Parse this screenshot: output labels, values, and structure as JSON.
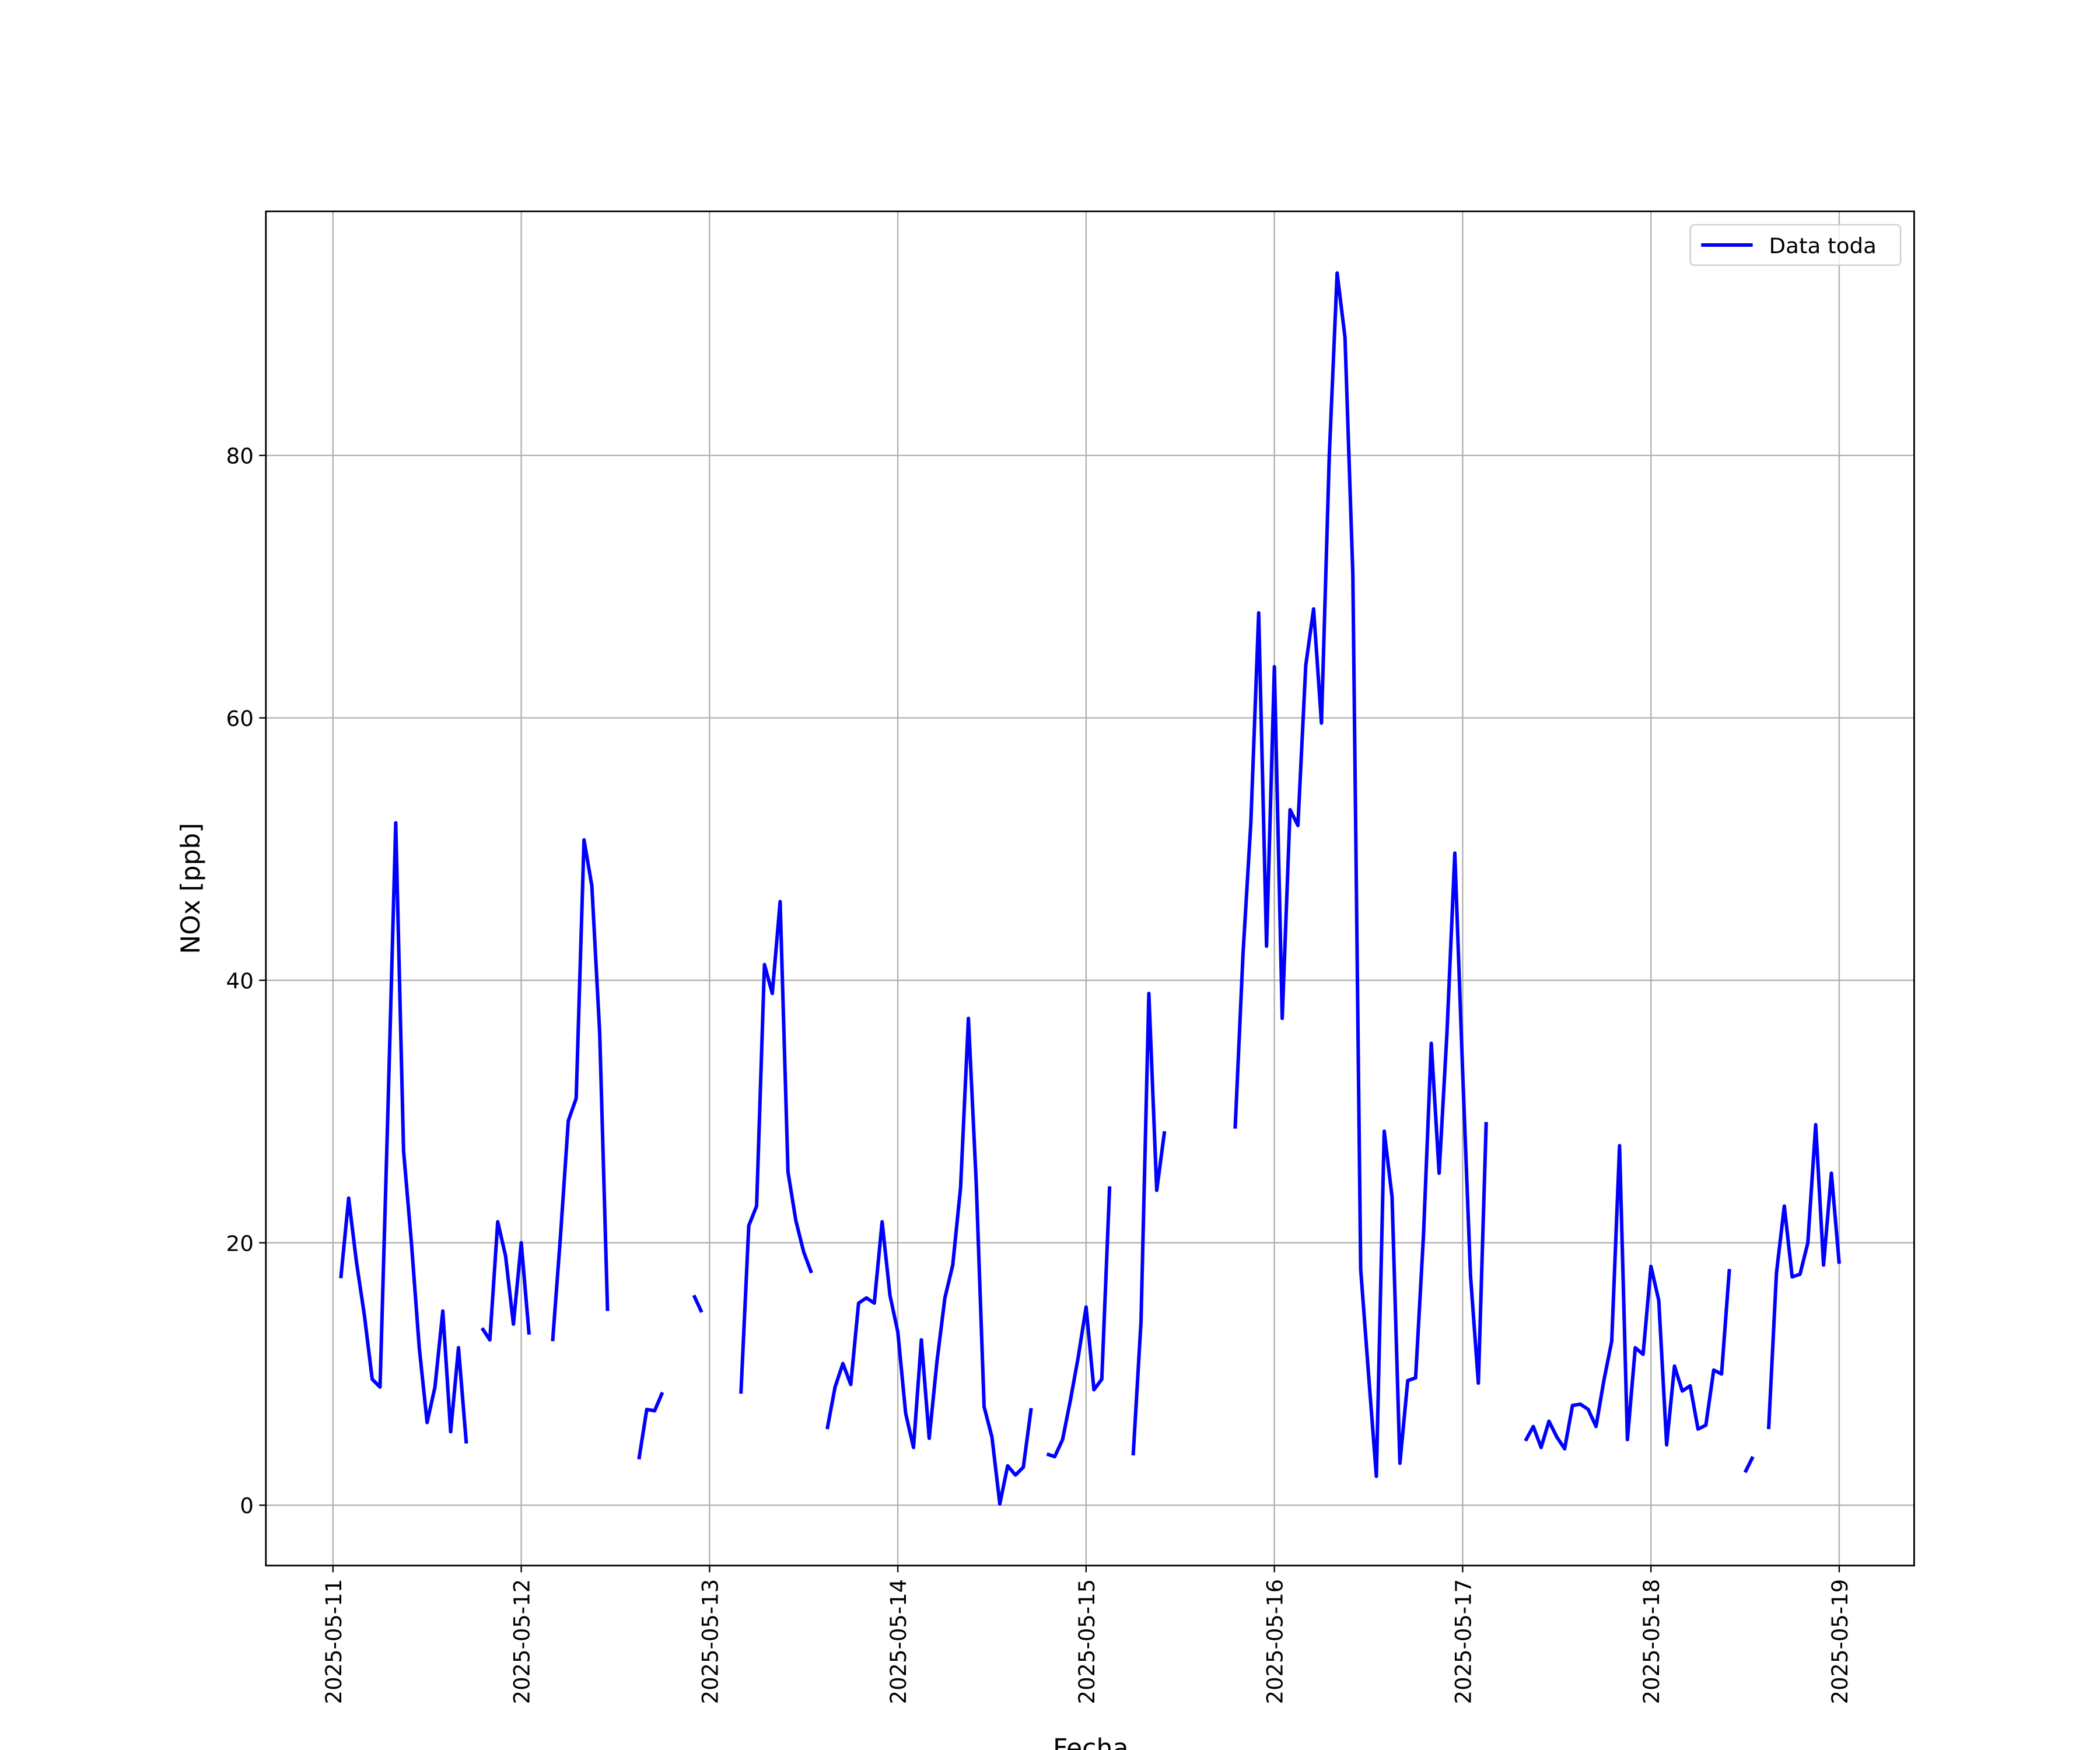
{
  "chart_data": {
    "type": "line",
    "xlabel": "Fecha",
    "ylabel": "NOx [ppb]",
    "x": [
      "2025-05-11 01:00",
      "2025-05-11 02:00",
      "2025-05-11 03:00",
      "2025-05-11 04:00",
      "2025-05-11 05:00",
      "2025-05-11 06:00",
      "2025-05-11 07:00",
      "2025-05-11 08:00",
      "2025-05-11 09:00",
      "2025-05-11 10:00",
      "2025-05-11 11:00",
      "2025-05-11 12:00",
      "2025-05-11 13:00",
      "2025-05-11 14:00",
      "2025-05-11 15:00",
      "2025-05-11 16:00",
      "2025-05-11 17:00",
      "2025-05-11 18:00",
      "2025-05-11 19:00",
      "2025-05-11 20:00",
      "2025-05-11 21:00",
      "2025-05-11 22:00",
      "2025-05-11 23:00",
      "2025-05-12 00:00",
      "2025-05-12 01:00",
      "2025-05-12 02:00",
      "2025-05-12 03:00",
      "2025-05-12 04:00",
      "2025-05-12 05:00",
      "2025-05-12 06:00",
      "2025-05-12 07:00",
      "2025-05-12 08:00",
      "2025-05-12 09:00",
      "2025-05-12 10:00",
      "2025-05-12 11:00",
      "2025-05-12 12:00",
      "2025-05-12 13:00",
      "2025-05-12 14:00",
      "2025-05-12 15:00",
      "2025-05-12 16:00",
      "2025-05-12 17:00",
      "2025-05-12 18:00",
      "2025-05-12 19:00",
      "2025-05-12 20:00",
      "2025-05-12 21:00",
      "2025-05-12 22:00",
      "2025-05-12 23:00",
      "2025-05-13 00:00",
      "2025-05-13 01:00",
      "2025-05-13 02:00",
      "2025-05-13 03:00",
      "2025-05-13 04:00",
      "2025-05-13 05:00",
      "2025-05-13 06:00",
      "2025-05-13 07:00",
      "2025-05-13 08:00",
      "2025-05-13 09:00",
      "2025-05-13 10:00",
      "2025-05-13 11:00",
      "2025-05-13 12:00",
      "2025-05-13 13:00",
      "2025-05-13 14:00",
      "2025-05-13 15:00",
      "2025-05-13 16:00",
      "2025-05-13 17:00",
      "2025-05-13 18:00",
      "2025-05-13 19:00",
      "2025-05-13 20:00",
      "2025-05-13 21:00",
      "2025-05-13 22:00",
      "2025-05-13 23:00",
      "2025-05-14 00:00",
      "2025-05-14 01:00",
      "2025-05-14 02:00",
      "2025-05-14 03:00",
      "2025-05-14 04:00",
      "2025-05-14 05:00",
      "2025-05-14 06:00",
      "2025-05-14 07:00",
      "2025-05-14 08:00",
      "2025-05-14 09:00",
      "2025-05-14 10:00",
      "2025-05-14 11:00",
      "2025-05-14 12:00",
      "2025-05-14 13:00",
      "2025-05-14 14:00",
      "2025-05-14 15:00",
      "2025-05-14 16:00",
      "2025-05-14 17:00",
      "2025-05-14 18:00",
      "2025-05-14 19:00",
      "2025-05-14 20:00",
      "2025-05-14 21:00",
      "2025-05-14 22:00",
      "2025-05-14 23:00",
      "2025-05-15 00:00",
      "2025-05-15 01:00",
      "2025-05-15 02:00",
      "2025-05-15 03:00",
      "2025-05-15 04:00",
      "2025-05-15 05:00",
      "2025-05-15 06:00",
      "2025-05-15 07:00",
      "2025-05-15 08:00",
      "2025-05-15 09:00",
      "2025-05-15 10:00",
      "2025-05-15 11:00",
      "2025-05-15 12:00",
      "2025-05-15 13:00",
      "2025-05-15 14:00",
      "2025-05-15 15:00",
      "2025-05-15 16:00",
      "2025-05-15 17:00",
      "2025-05-15 18:00",
      "2025-05-15 19:00",
      "2025-05-15 20:00",
      "2025-05-15 21:00",
      "2025-05-15 22:00",
      "2025-05-15 23:00",
      "2025-05-16 00:00",
      "2025-05-16 01:00",
      "2025-05-16 02:00",
      "2025-05-16 03:00",
      "2025-05-16 04:00",
      "2025-05-16 05:00",
      "2025-05-16 06:00",
      "2025-05-16 07:00",
      "2025-05-16 08:00",
      "2025-05-16 09:00",
      "2025-05-16 10:00",
      "2025-05-16 11:00",
      "2025-05-16 12:00",
      "2025-05-16 13:00",
      "2025-05-16 14:00",
      "2025-05-16 15:00",
      "2025-05-16 16:00",
      "2025-05-16 17:00",
      "2025-05-16 18:00",
      "2025-05-16 19:00",
      "2025-05-16 20:00",
      "2025-05-16 21:00",
      "2025-05-16 22:00",
      "2025-05-16 23:00",
      "2025-05-17 00:00",
      "2025-05-17 01:00",
      "2025-05-17 02:00",
      "2025-05-17 03:00",
      "2025-05-17 04:00",
      "2025-05-17 05:00",
      "2025-05-17 06:00",
      "2025-05-17 07:00",
      "2025-05-17 08:00",
      "2025-05-17 09:00",
      "2025-05-17 10:00",
      "2025-05-17 11:00",
      "2025-05-17 12:00",
      "2025-05-17 13:00",
      "2025-05-17 14:00",
      "2025-05-17 15:00",
      "2025-05-17 16:00",
      "2025-05-17 17:00",
      "2025-05-17 18:00",
      "2025-05-17 19:00",
      "2025-05-17 20:00",
      "2025-05-17 21:00",
      "2025-05-17 22:00",
      "2025-05-17 23:00",
      "2025-05-18 00:00",
      "2025-05-18 01:00",
      "2025-05-18 02:00",
      "2025-05-18 03:00",
      "2025-05-18 04:00",
      "2025-05-18 05:00",
      "2025-05-18 06:00",
      "2025-05-18 07:00",
      "2025-05-18 08:00",
      "2025-05-18 09:00",
      "2025-05-18 10:00",
      "2025-05-18 11:00",
      "2025-05-18 12:00",
      "2025-05-18 13:00",
      "2025-05-18 14:00",
      "2025-05-18 15:00",
      "2025-05-18 16:00",
      "2025-05-18 17:00",
      "2025-05-18 18:00",
      "2025-05-18 19:00",
      "2025-05-18 20:00",
      "2025-05-18 21:00",
      "2025-05-18 22:00",
      "2025-05-18 23:00",
      "2025-05-19 00:00"
    ],
    "series": [
      {
        "name": "Data toda",
        "color": "#0000ff",
        "values": [
          17.3,
          23.4,
          18.5,
          14.5,
          9.6,
          9.0,
          30,
          52,
          27,
          20,
          12,
          6.3,
          9,
          14.8,
          5.6,
          12,
          4.7,
          null,
          13.5,
          12.6,
          21.6,
          19,
          13.8,
          20,
          13,
          null,
          null,
          12.5,
          20.5,
          29.3,
          31,
          50.7,
          47.2,
          36,
          14.8,
          null,
          null,
          null,
          3.5,
          7.3,
          7.2,
          8.6,
          null,
          null,
          null,
          16,
          14.7,
          null,
          null,
          null,
          null,
          8.5,
          21.3,
          22.8,
          41.2,
          39,
          46,
          25.4,
          21.7,
          19.3,
          17.7,
          null,
          5.8,
          9,
          10.8,
          9.2,
          15.4,
          15.8,
          15.4,
          21.6,
          16,
          13.2,
          7,
          4.4,
          12.6,
          5.1,
          11,
          15.8,
          18.3,
          24.2,
          37.1,
          24.5,
          7.5,
          5.2,
          0.1,
          3,
          2.3,
          2.9,
          7.4,
          null,
          3.9,
          3.7,
          5,
          8,
          11.3,
          15.1,
          8.8,
          9.6,
          24.3,
          null,
          null,
          3.8,
          14,
          39,
          24,
          28.5,
          null,
          null,
          null,
          null,
          null,
          null,
          null,
          null,
          28.7,
          42,
          52,
          68,
          42.6,
          63.9,
          37.1,
          53,
          51.8,
          64,
          68.3,
          59.6,
          80,
          93.9,
          89,
          71,
          18,
          10,
          2.2,
          28.5,
          23.5,
          3.2,
          9.5,
          9.7,
          20.5,
          35.2,
          25.3,
          36,
          49.7,
          33,
          17.5,
          9.3,
          29.2,
          null,
          null,
          null,
          null,
          4.9,
          6,
          4.4,
          6.4,
          5.2,
          4.3,
          7.6,
          7.7,
          7.3,
          6,
          9.5,
          12.5,
          27.4,
          5,
          12,
          11.5,
          18.2,
          15.6,
          4.6,
          10.6,
          8.7,
          9.1,
          5.8,
          6.1,
          10.3,
          10,
          18,
          null,
          2.5,
          3.7,
          null,
          5.8,
          17.7,
          22.8,
          17.4,
          17.6,
          20,
          29,
          18.3,
          25.3,
          18.4
        ]
      }
    ],
    "xlim": [
      "2025-05-10 15:27",
      "2025-05-19 09:33"
    ],
    "xticks": [
      "2025-05-11",
      "2025-05-12",
      "2025-05-13",
      "2025-05-14",
      "2025-05-15",
      "2025-05-16",
      "2025-05-17",
      "2025-05-18",
      "2025-05-19"
    ],
    "ylim": [
      -4.6,
      98.6
    ],
    "yticks": [
      0,
      20,
      40,
      60,
      80
    ],
    "grid": true,
    "legend": "upper right"
  }
}
